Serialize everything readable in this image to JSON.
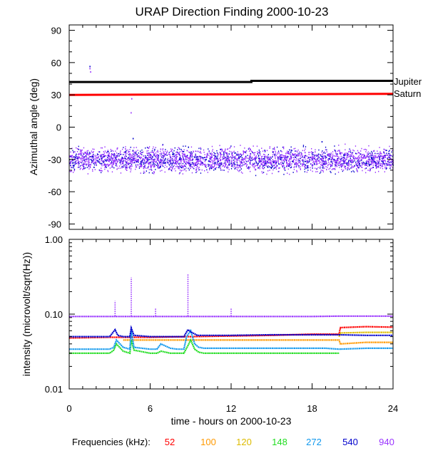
{
  "chart_data": [
    {
      "type": "scatter",
      "title": "URAP Direction Finding  2000-10-23",
      "ylabel": "Azimuthal angle (deg)",
      "xlim": [
        0,
        24
      ],
      "ylim": [
        -95,
        95
      ],
      "yticks": [
        90,
        60,
        30,
        0,
        -30,
        -60,
        -90
      ],
      "reference_lines": [
        {
          "label": "Jupiter",
          "color": "#000000",
          "x": [
            0,
            13.5,
            13.5,
            24
          ],
          "y": [
            42,
            42,
            43,
            43
          ]
        },
        {
          "label": "Saturn",
          "color": "#ff0000",
          "x": [
            0,
            24
          ],
          "y": [
            30,
            31
          ]
        }
      ],
      "scatter_band": {
        "center": -30,
        "spread": 8,
        "colors": [
          "#9933ff",
          "#0000cc"
        ]
      },
      "outliers": [
        {
          "x": 1.5,
          "y": 57,
          "color": "#0000cc"
        },
        {
          "x": 1.5,
          "y": 55,
          "color": "#9933ff"
        },
        {
          "x": 1.55,
          "y": 52,
          "color": "#9933ff"
        },
        {
          "x": 4.6,
          "y": 27,
          "color": "#9933ff"
        },
        {
          "x": 4.55,
          "y": 14,
          "color": "#9933ff"
        },
        {
          "x": 4.7,
          "y": -10,
          "color": "#0000cc"
        },
        {
          "x": 18.7,
          "y": -13,
          "color": "#0000cc"
        },
        {
          "x": 8.8,
          "y": -18,
          "color": "#0000cc"
        }
      ]
    },
    {
      "type": "line",
      "ylabel": "intensity (microvolt/sqrt(Hz))",
      "xlabel": "time - hours on 2000-10-23",
      "xlim": [
        0,
        24
      ],
      "xticks": [
        0,
        6,
        12,
        18,
        24
      ],
      "ylim": [
        0.01,
        1.0
      ],
      "yscale": "log",
      "yticks": [
        "1.00",
        "0.10",
        "0.01"
      ],
      "legend_label": "Frequencies (kHz):",
      "series": [
        {
          "name": "52",
          "color": "#ff0000",
          "x": [
            0,
            3,
            6,
            9,
            12,
            15,
            18,
            20,
            20.1,
            22,
            24
          ],
          "y": [
            0.048,
            0.049,
            0.049,
            0.05,
            0.051,
            0.052,
            0.054,
            0.054,
            0.066,
            0.068,
            0.067
          ]
        },
        {
          "name": "100",
          "color": "#ff9900",
          "x": [
            4,
            6,
            9,
            12,
            15,
            18,
            20,
            20.1,
            22,
            24
          ],
          "y": [
            0.045,
            0.045,
            0.045,
            0.045,
            0.045,
            0.045,
            0.045,
            0.04,
            0.042,
            0.042
          ]
        },
        {
          "name": "120",
          "color": "#ddbb00",
          "x": [
            20,
            20.1,
            22,
            24
          ],
          "y": [
            0.05,
            0.056,
            0.057,
            0.057
          ]
        },
        {
          "name": "148",
          "color": "#22dd22",
          "x": [
            0,
            3,
            3.3,
            3.5,
            4,
            4.5,
            4.6,
            4.8,
            6,
            6.5,
            6.8,
            7.5,
            8,
            8.5,
            8.8,
            9,
            9.3,
            9.6,
            10,
            12,
            15,
            18,
            19,
            20
          ],
          "y": [
            0.03,
            0.03,
            0.033,
            0.04,
            0.032,
            0.03,
            0.045,
            0.033,
            0.03,
            0.03,
            0.032,
            0.03,
            0.03,
            0.03,
            0.038,
            0.045,
            0.034,
            0.031,
            0.03,
            0.03,
            0.03,
            0.03,
            0.03,
            0.03
          ]
        },
        {
          "name": "272",
          "color": "#1199ee",
          "x": [
            0,
            3,
            3.3,
            3.5,
            4,
            4.5,
            4.6,
            4.8,
            6,
            6.5,
            6.8,
            7.5,
            8,
            8.5,
            8.7,
            9,
            9.3,
            9.6,
            10,
            12,
            15,
            18,
            19,
            20,
            22,
            24
          ],
          "y": [
            0.034,
            0.034,
            0.036,
            0.045,
            0.036,
            0.034,
            0.06,
            0.036,
            0.034,
            0.034,
            0.04,
            0.035,
            0.034,
            0.034,
            0.05,
            0.06,
            0.04,
            0.036,
            0.035,
            0.035,
            0.035,
            0.035,
            0.035,
            0.034,
            0.035,
            0.035
          ]
        },
        {
          "name": "540",
          "color": "#0000cc",
          "x": [
            0,
            3,
            3.4,
            3.6,
            4,
            4.5,
            4.6,
            4.8,
            6,
            8,
            8.5,
            8.8,
            9,
            9.5,
            12,
            15,
            18,
            20,
            22,
            24
          ],
          "y": [
            0.05,
            0.05,
            0.062,
            0.052,
            0.05,
            0.05,
            0.065,
            0.052,
            0.05,
            0.05,
            0.05,
            0.062,
            0.058,
            0.052,
            0.052,
            0.053,
            0.053,
            0.053,
            0.052,
            0.052
          ]
        },
        {
          "name": "940",
          "color": "#9933ff",
          "x": [
            0,
            6,
            12,
            18,
            20,
            24
          ],
          "y": [
            0.093,
            0.093,
            0.093,
            0.093,
            0.094,
            0.094
          ]
        }
      ],
      "spikes": [
        {
          "x": 3.4,
          "y_top": 0.15,
          "color": "#9933ff"
        },
        {
          "x": 4.6,
          "y_top": 0.31,
          "color": "#9933ff"
        },
        {
          "x": 6.4,
          "y_top": 0.12,
          "color": "#9933ff"
        },
        {
          "x": 8.8,
          "y_top": 0.35,
          "color": "#9933ff"
        },
        {
          "x": 12.0,
          "y_top": 0.12,
          "color": "#9933ff"
        }
      ]
    }
  ]
}
